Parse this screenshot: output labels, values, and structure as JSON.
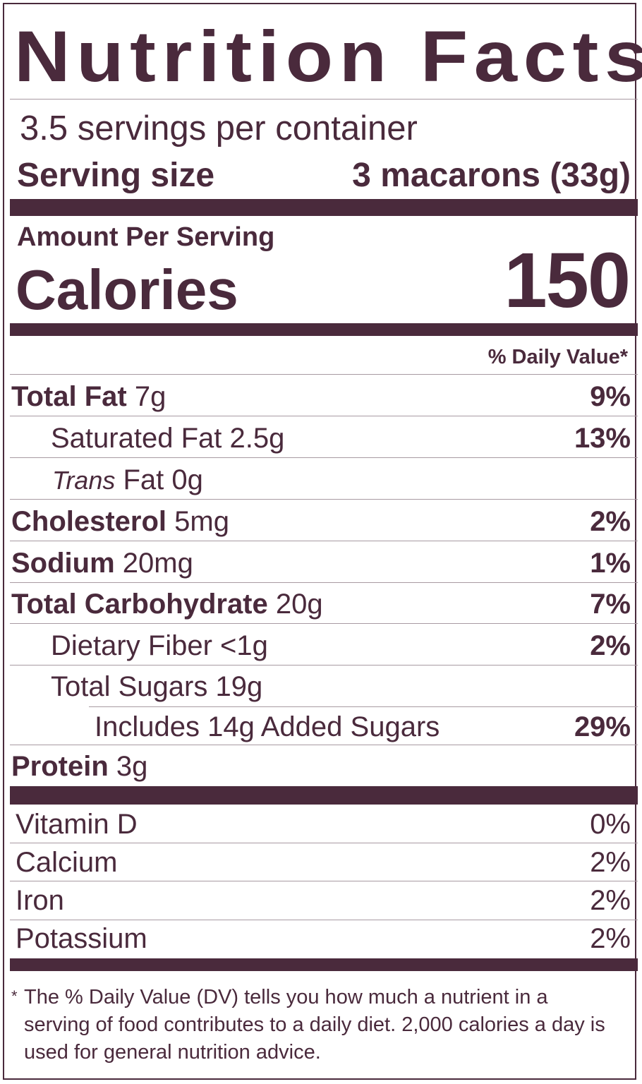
{
  "title": "Nutrition Facts",
  "servings_per_container": "3.5 servings per container",
  "serving_size_label": "Serving size",
  "serving_size_value": "3 macarons (33g)",
  "amount_per_serving": "Amount Per Serving",
  "calories_label": "Calories",
  "calories_value": "150",
  "daily_value_header": "% Daily Value*",
  "nutrients": {
    "total_fat": {
      "name": "Total Fat",
      "amount": "7g",
      "dv": "9%"
    },
    "saturated_fat": {
      "name": "Saturated Fat 2.5g",
      "dv": "13%"
    },
    "trans_fat": {
      "name_italic": "Trans",
      "name_rest": "Fat 0g"
    },
    "cholesterol": {
      "name": "Cholesterol",
      "amount": "5mg",
      "dv": "2%"
    },
    "sodium": {
      "name": "Sodium",
      "amount": "20mg",
      "dv": "1%"
    },
    "total_carbohydrate": {
      "name": "Total Carbohydrate",
      "amount": "20g",
      "dv": "7%"
    },
    "dietary_fiber": {
      "name": "Dietary Fiber <1g",
      "dv": "2%"
    },
    "total_sugars": {
      "name": "Total Sugars 19g"
    },
    "added_sugars": {
      "name": "Includes 14g Added Sugars",
      "dv": "29%"
    },
    "protein": {
      "name": "Protein",
      "amount": "3g"
    }
  },
  "vitamins": [
    {
      "name": "Vitamin D",
      "dv": "0%"
    },
    {
      "name": "Calcium",
      "dv": "2%"
    },
    {
      "name": "Iron",
      "dv": "2%"
    },
    {
      "name": "Potassium",
      "dv": "2%"
    }
  ],
  "footnote_star": "*",
  "footnote": "The % Daily Value (DV) tells you how much a nutrient in a serving of food contributes to a daily diet. 2,000 calories a day is used for general nutrition advice.",
  "colors": {
    "ink": "#4a2a3c",
    "hairline": "#a89aa2",
    "background": "#ffffff"
  }
}
